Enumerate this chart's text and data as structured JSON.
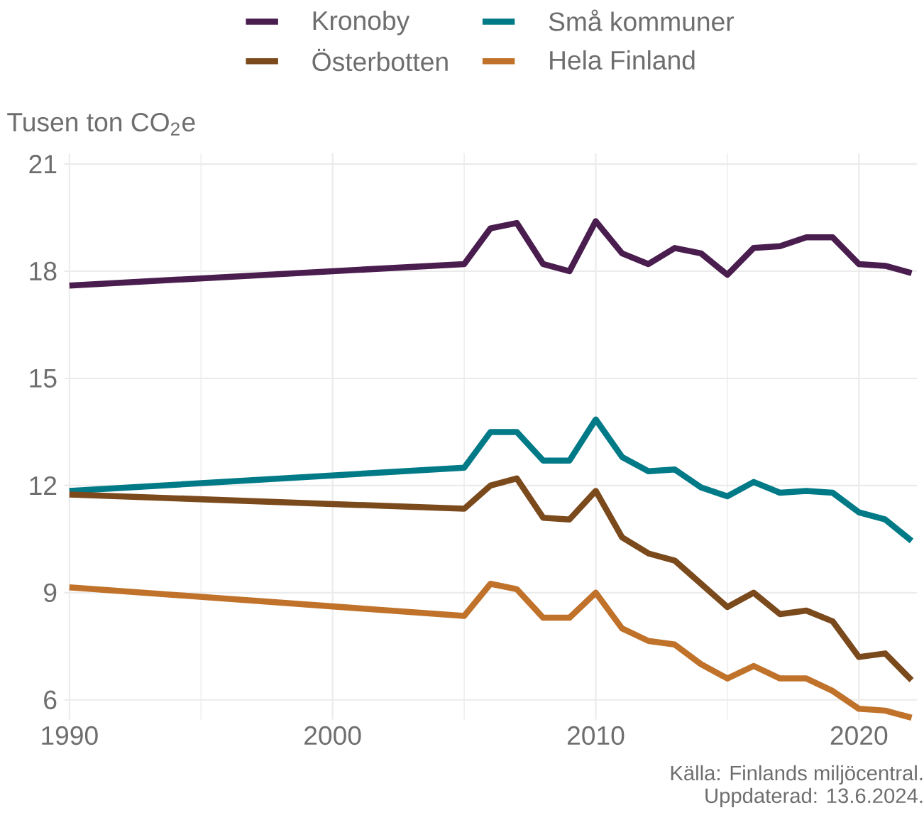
{
  "chart_data": {
    "type": "line",
    "ylabel": "Tusen ton CO$_{2}$e",
    "x": [
      1990,
      2005,
      2006,
      2007,
      2008,
      2009,
      2010,
      2011,
      2012,
      2013,
      2014,
      2015,
      2016,
      2017,
      2018,
      2019,
      2020,
      2021,
      2022
    ],
    "series": [
      {
        "name": "Kronoby",
        "color": "#4a1d4f",
        "values": [
          17.6,
          18.2,
          19.2,
          19.35,
          18.2,
          18.0,
          19.4,
          18.5,
          18.2,
          18.65,
          18.5,
          17.9,
          18.65,
          18.7,
          18.95,
          18.95,
          18.2,
          18.15,
          17.95
        ]
      },
      {
        "name": "Små kommuner",
        "color": "#007a87",
        "values": [
          11.85,
          12.5,
          13.5,
          13.5,
          12.7,
          12.7,
          13.85,
          12.8,
          12.4,
          12.45,
          11.95,
          11.7,
          12.1,
          11.8,
          11.85,
          11.8,
          11.25,
          11.05,
          10.45
        ]
      },
      {
        "name": "Österbotten",
        "color": "#7b4a1c",
        "values": [
          11.75,
          11.35,
          12.0,
          12.2,
          11.1,
          11.05,
          11.85,
          10.55,
          10.1,
          9.9,
          9.25,
          8.6,
          9.0,
          8.4,
          8.5,
          8.2,
          7.2,
          7.3,
          6.55
        ]
      },
      {
        "name": "Hela Finland",
        "color": "#c0722a",
        "values": [
          9.15,
          8.35,
          9.25,
          9.1,
          8.3,
          8.3,
          9.0,
          8.0,
          7.65,
          7.55,
          7.0,
          6.6,
          6.95,
          6.6,
          6.6,
          6.25,
          5.75,
          5.7,
          5.5
        ]
      }
    ],
    "xlim": [
      1989.8,
      2022.2
    ],
    "xticks": [
      1990,
      2000,
      2010,
      2020
    ],
    "ylim": [
      5.45,
      21.3
    ],
    "yticks": [
      6,
      9,
      12,
      15,
      18,
      21
    ],
    "grid": true,
    "legend": "top",
    "marker": "none",
    "line_style": "solid",
    "annotations": [
      "Källa: Finlands miljöcentral.",
      "Uppdaterad: 13.6.2024."
    ]
  }
}
